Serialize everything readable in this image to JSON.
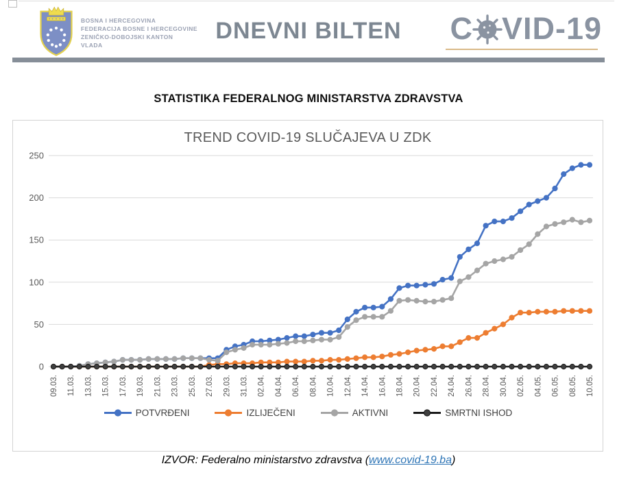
{
  "header": {
    "gov_lines": [
      "BOSNA I HERCEGOVINA",
      "FEDERACIJA BOSNE I HERCEGOVINE",
      "ZENIČKO-DOBOJSKI KANTON",
      "VLADA"
    ],
    "bulletin_title": "DNEVNI BILTEN",
    "covid_logo_prefix": "C",
    "covid_logo_suffix": "VID-19",
    "logo_color": "#8A93A1",
    "underline_color": "#D9B886"
  },
  "section_title": "STATISTIKA FEDERALNOG MINISTARSTVA ZDRAVSTVA",
  "chart_data": {
    "type": "line",
    "title": "TREND COVID-19 SLUČAJEVA U ZDK",
    "xlabel": "",
    "ylabel": "",
    "ylim": [
      0,
      250
    ],
    "yticks": [
      0,
      50,
      100,
      150,
      200,
      250
    ],
    "grid": "horizontal",
    "legend_position": "bottom",
    "x": [
      "09.03.",
      "10.03.",
      "11.03.",
      "12.03.",
      "13.03.",
      "14.03.",
      "15.03.",
      "16.03.",
      "17.03.",
      "18.03.",
      "19.03.",
      "20.03.",
      "21.03.",
      "22.03.",
      "23.03.",
      "24.03.",
      "25.03.",
      "26.03.",
      "27.03.",
      "28.03.",
      "29.03.",
      "30.03.",
      "31.03.",
      "01.04.",
      "02.04.",
      "03.04.",
      "04.04.",
      "05.04.",
      "06.04.",
      "07.04.",
      "08.04.",
      "09.04.",
      "10.04.",
      "11.04.",
      "12.04.",
      "13.04.",
      "14.04.",
      "15.04.",
      "16.04.",
      "17.04.",
      "18.04.",
      "19.04.",
      "20.04.",
      "21.04.",
      "22.04.",
      "23.04.",
      "24.04.",
      "25.04.",
      "26.04.",
      "27.04.",
      "28.04.",
      "29.04.",
      "30.04.",
      "01.05.",
      "02.05.",
      "03.05.",
      "04.05.",
      "05.05.",
      "06.05.",
      "07.05.",
      "08.05.",
      "09.05.",
      "10.05."
    ],
    "x_tick_labels": [
      "09.03.",
      "11.03.",
      "13.03.",
      "15.03.",
      "17.03.",
      "19.03.",
      "21.03.",
      "23.03.",
      "25.03.",
      "27.03.",
      "29.03.",
      "31.03.",
      "02.04.",
      "04.04.",
      "06.04.",
      "08.04.",
      "10.04.",
      "12.04.",
      "14.04.",
      "16.04.",
      "18.04.",
      "20.04.",
      "22.04.",
      "24.04.",
      "26.04.",
      "28.04.",
      "30.04.",
      "02.05.",
      "04.05.",
      "06.05.",
      "08.05.",
      "10.05."
    ],
    "x_tick_every": 2,
    "series": [
      {
        "name": "POTVRĐENI",
        "color": "#4472C4",
        "marker_fill": "#4472C4",
        "values": [
          0,
          0,
          0,
          1,
          3,
          4,
          5,
          6,
          8,
          8,
          8,
          9,
          9,
          9,
          9,
          10,
          10,
          10,
          10,
          10,
          20,
          24,
          26,
          30,
          30,
          31,
          32,
          34,
          36,
          36,
          38,
          40,
          40,
          43,
          56,
          65,
          70,
          70,
          71,
          80,
          93,
          96,
          96,
          97,
          98,
          103,
          105,
          130,
          139,
          146,
          167,
          172,
          172,
          176,
          184,
          192,
          196,
          200,
          211,
          228,
          235,
          239,
          239
        ]
      },
      {
        "name": "IZLIJEČENI",
        "color": "#ED7D31",
        "marker_fill": "#ED7D31",
        "values": [
          0,
          0,
          0,
          0,
          0,
          0,
          0,
          0,
          0,
          0,
          0,
          0,
          0,
          0,
          0,
          0,
          0,
          0,
          2,
          3,
          3,
          4,
          4,
          4,
          5,
          5,
          5,
          6,
          6,
          6,
          7,
          7,
          8,
          8,
          9,
          10,
          11,
          11,
          12,
          14,
          15,
          17,
          19,
          20,
          21,
          24,
          24,
          29,
          34,
          34,
          40,
          45,
          50,
          58,
          64,
          64,
          65,
          65,
          65,
          66,
          66,
          66,
          66
        ]
      },
      {
        "name": "AKTIVNI",
        "color": "#A5A5A5",
        "marker_fill": "#A5A5A5",
        "values": [
          0,
          0,
          0,
          1,
          3,
          4,
          5,
          6,
          8,
          8,
          8,
          9,
          9,
          9,
          9,
          10,
          10,
          10,
          8,
          7,
          17,
          20,
          22,
          26,
          26,
          26,
          27,
          28,
          30,
          30,
          31,
          32,
          32,
          35,
          47,
          55,
          59,
          59,
          59,
          66,
          78,
          79,
          78,
          77,
          77,
          79,
          81,
          101,
          106,
          114,
          122,
          125,
          127,
          130,
          138,
          145,
          157,
          166,
          169,
          171,
          174,
          171,
          173
        ]
      },
      {
        "name": "SMRTNI ISHOD",
        "color": "#1A1A1A",
        "marker_fill": "#3F3F3F",
        "values": [
          0,
          0,
          0,
          0,
          0,
          0,
          0,
          0,
          0,
          0,
          0,
          0,
          0,
          0,
          0,
          0,
          0,
          0,
          0,
          0,
          0,
          0,
          0,
          0,
          0,
          0,
          0,
          0,
          0,
          0,
          0,
          0,
          0,
          0,
          0,
          0,
          0,
          0,
          0,
          0,
          0,
          0,
          0,
          0,
          0,
          0,
          0,
          0,
          0,
          0,
          0,
          0,
          0,
          0,
          0,
          0,
          0,
          0,
          0,
          0,
          0,
          0,
          0
        ]
      }
    ],
    "axis_text_color": "#595959",
    "gridline_color": "#D9D9D9"
  },
  "footer": {
    "source_prefix": "IZVOR: Federalno ministarstvo zdravstva (",
    "link_text": "www.covid-19.ba",
    "source_suffix": ")",
    "link_color": "#2E75B6"
  }
}
